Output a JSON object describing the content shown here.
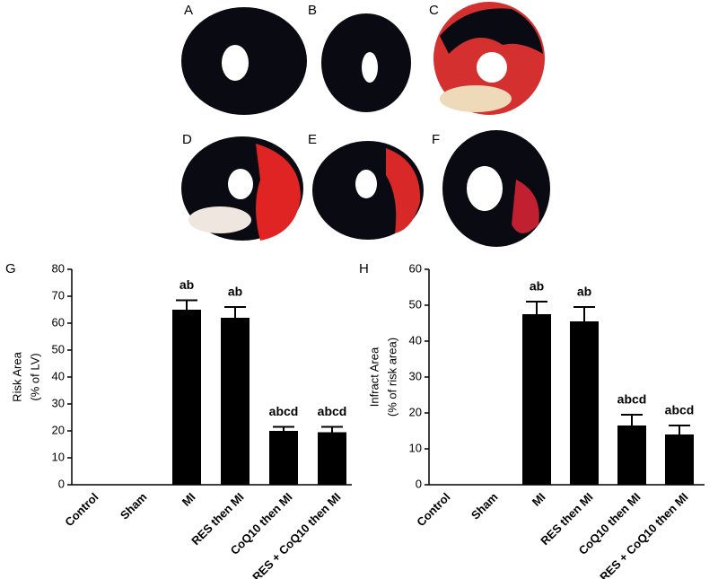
{
  "figure": {
    "panels": [
      "A",
      "B",
      "C",
      "D",
      "E",
      "F"
    ]
  },
  "chart_data": [
    {
      "type": "bar",
      "panel": "G",
      "ylabel": [
        "Risk Area",
        "(% of LV)"
      ],
      "categories": [
        "Control",
        "Sham",
        "MI",
        "RES then MI",
        "CoQ10 then MI",
        "RES + CoQ10 then MI"
      ],
      "values": [
        0,
        0,
        65,
        62,
        20,
        19.5
      ],
      "errors": [
        null,
        null,
        3.5,
        4,
        1.5,
        2
      ],
      "annotations": [
        null,
        null,
        "ab",
        "ab",
        "abcd",
        "abcd"
      ],
      "color": "#000000",
      "ylim": [
        0,
        80
      ],
      "yticks": [
        0,
        10,
        20,
        30,
        40,
        50,
        60,
        70,
        80
      ]
    },
    {
      "type": "bar",
      "panel": "H",
      "ylabel": [
        "Infract Area",
        "(% of risk area)"
      ],
      "categories": [
        "Control",
        "Sham",
        "MI",
        "RES then MI",
        "CoQ10 then MI",
        "RES + CoQ10 then MI"
      ],
      "values": [
        0,
        0,
        47.5,
        45.5,
        16.5,
        14
      ],
      "errors": [
        null,
        null,
        3.5,
        4,
        3,
        2.5
      ],
      "annotations": [
        null,
        null,
        "ab",
        "ab",
        "abcd",
        "abcd"
      ],
      "color": "#000000",
      "ylim": [
        0,
        60
      ],
      "yticks": [
        0,
        10,
        20,
        30,
        40,
        50,
        60
      ]
    }
  ]
}
